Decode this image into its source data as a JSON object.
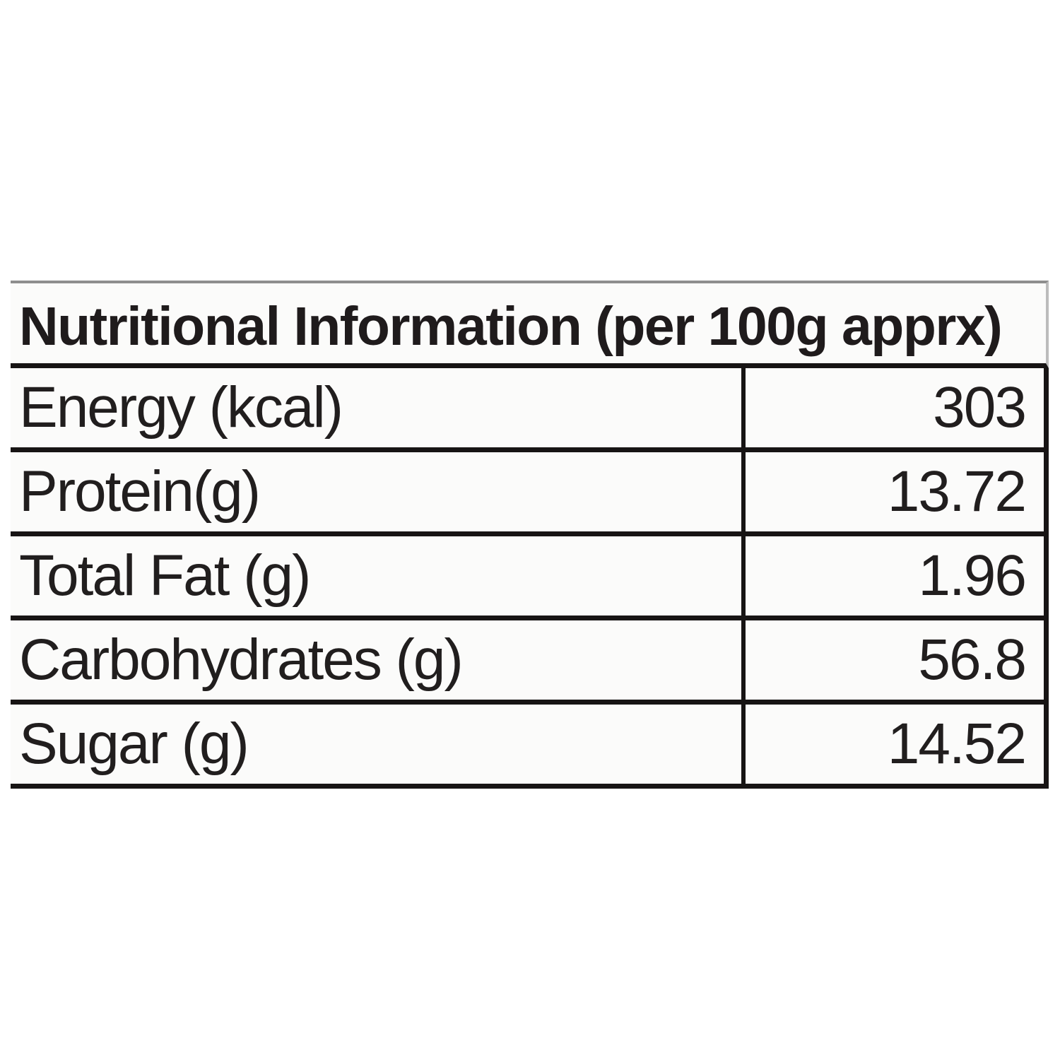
{
  "table": {
    "title": "Nutritional Information (per 100g apprx)",
    "rows": [
      {
        "label": "Energy (kcal)",
        "value": "303"
      },
      {
        "label": "Protein(g)",
        "value": "13.72"
      },
      {
        "label": "Total Fat (g)",
        "value": "1.96"
      },
      {
        "label": "Carbohydrates (g)",
        "value": "56.8"
      },
      {
        "label": "Sugar (g)",
        "value": "14.52"
      }
    ],
    "colors": {
      "border_dark": "#171414",
      "border_top_gray": "#8e8e8e",
      "text": "#211e1e",
      "cell_background": "#fbfbfa",
      "page_background": "#ffffff"
    }
  }
}
